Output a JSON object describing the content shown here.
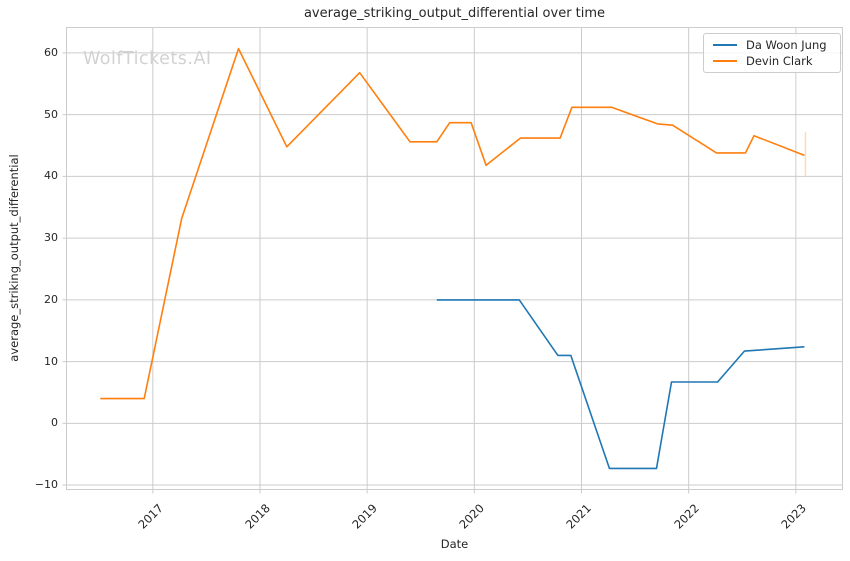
{
  "watermark": "WolfTickets.AI",
  "chart_data": {
    "type": "line",
    "title": "average_striking_output_differential over time",
    "xlabel": "Date",
    "ylabel": "average_striking_output_differential",
    "xlim": [
      2016.19,
      2023.44
    ],
    "ylim": [
      -10.8,
      64.2
    ],
    "xticks": [
      2017,
      2018,
      2019,
      2020,
      2021,
      2022,
      2023
    ],
    "yticks": [
      -10,
      0,
      10,
      20,
      30,
      40,
      50,
      60
    ],
    "grid": true,
    "legend_position": "upper-right",
    "series": [
      {
        "name": "Da Woon Jung",
        "color": "#1f77b4",
        "points": [
          [
            2019.65,
            20.0
          ],
          [
            2020.42,
            20.0
          ],
          [
            2020.78,
            11.0
          ],
          [
            2020.9,
            11.0
          ],
          [
            2021.26,
            -7.3
          ],
          [
            2021.7,
            -7.3
          ],
          [
            2021.84,
            6.7
          ],
          [
            2022.27,
            6.7
          ],
          [
            2022.52,
            11.7
          ],
          [
            2023.08,
            12.4
          ]
        ]
      },
      {
        "name": "Devin Clark",
        "color": "#ff7f0e",
        "points": [
          [
            2016.51,
            4.0
          ],
          [
            2016.92,
            4.0
          ],
          [
            2017.27,
            33.2
          ],
          [
            2017.8,
            60.7
          ],
          [
            2018.25,
            44.8
          ],
          [
            2018.93,
            56.8
          ],
          [
            2019.4,
            45.6
          ],
          [
            2019.65,
            45.6
          ],
          [
            2019.77,
            48.7
          ],
          [
            2019.97,
            48.7
          ],
          [
            2020.11,
            41.8
          ],
          [
            2020.43,
            46.2
          ],
          [
            2020.8,
            46.2
          ],
          [
            2020.91,
            51.2
          ],
          [
            2021.28,
            51.2
          ],
          [
            2021.71,
            48.5
          ],
          [
            2021.85,
            48.3
          ],
          [
            2022.26,
            43.8
          ],
          [
            2022.53,
            43.8
          ],
          [
            2022.61,
            46.6
          ],
          [
            2023.08,
            43.4
          ]
        ],
        "error_bar": {
          "x": 2023.09,
          "y_low": 40.1,
          "y_high": 47.2
        }
      }
    ],
    "colors": {
      "grid": "#cccccc",
      "axis_edge": "#cccccc",
      "text": "#262626",
      "watermark": "#d2d2d2",
      "error_bar": "#ffd9b3"
    }
  }
}
